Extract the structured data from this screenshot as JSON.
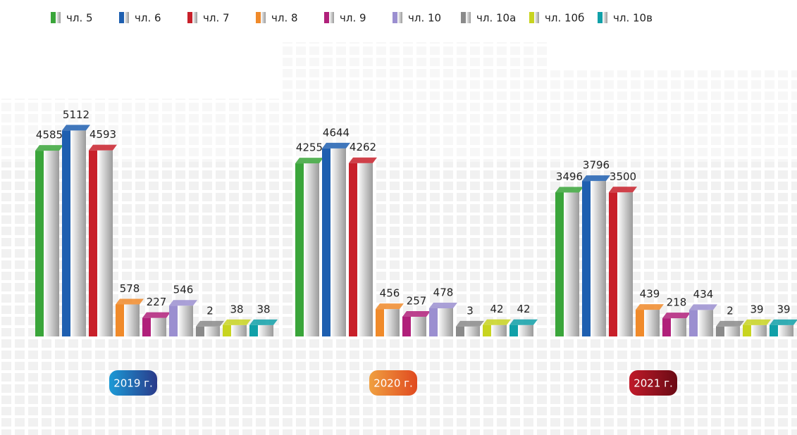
{
  "chart_data": {
    "type": "bar3d",
    "categories": [
      "2019 г.",
      "2020 г.",
      "2021 г."
    ],
    "legend": "top",
    "series": [
      {
        "name": "чл. 5",
        "color": "#3aa53a",
        "values": [
          4585,
          4255,
          3496
        ]
      },
      {
        "name": "чл. 6",
        "color": "#1e5fb0",
        "values": [
          5112,
          4644,
          3796
        ]
      },
      {
        "name": "чл. 7",
        "color": "#c8202a",
        "values": [
          4593,
          4262,
          3500
        ]
      },
      {
        "name": "чл. 8",
        "color": "#f08a2a",
        "values": [
          578,
          456,
          439
        ]
      },
      {
        "name": "чл. 9",
        "color": "#b0207a",
        "values": [
          227,
          257,
          218
        ]
      },
      {
        "name": "чл. 10",
        "color": "#9b8fd0",
        "values": [
          546,
          478,
          434
        ]
      },
      {
        "name": "чл. 10а",
        "color": "#8a8a8a",
        "values": [
          2,
          3,
          2
        ]
      },
      {
        "name": "чл. 10б",
        "color": "#c8d420",
        "values": [
          38,
          42,
          39
        ]
      },
      {
        "name": "чл. 10в",
        "color": "#10a0a8",
        "values": [
          38,
          42,
          39
        ]
      }
    ]
  }
}
